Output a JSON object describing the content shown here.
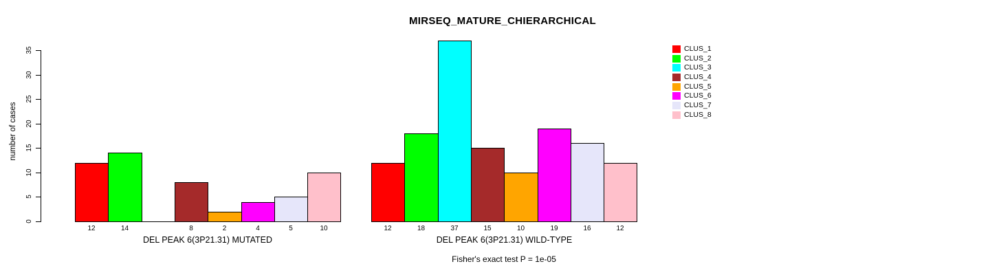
{
  "chart_data": {
    "type": "bar",
    "title": "MIRSEQ_MATURE_CHIERARCHICAL",
    "ylabel": "number of cases",
    "ylim": [
      0,
      35
    ],
    "yticks": [
      0,
      5,
      10,
      15,
      20,
      25,
      30,
      35
    ],
    "grid": false,
    "legend_position": "top-right",
    "legend": [
      {
        "label": "CLUS_1",
        "color": "#FF0000"
      },
      {
        "label": "CLUS_2",
        "color": "#00FF00"
      },
      {
        "label": "CLUS_3",
        "color": "#00FFFF"
      },
      {
        "label": "CLUS_4",
        "color": "#A52A2A"
      },
      {
        "label": "CLUS_5",
        "color": "#FFA500"
      },
      {
        "label": "CLUS_6",
        "color": "#FF00FF"
      },
      {
        "label": "CLUS_7",
        "color": "#E6E6FA"
      },
      {
        "label": "CLUS_8",
        "color": "#FFC0CB"
      }
    ],
    "groups": [
      {
        "label": "DEL PEAK  6(3P21.31) MUTATED",
        "values": [
          12,
          14,
          0,
          8,
          2,
          4,
          5,
          10
        ],
        "bar_labels": [
          "12",
          "14",
          "",
          "8",
          "2",
          "4",
          "5",
          "10"
        ]
      },
      {
        "label": "DEL PEAK  6(3P21.31) WILD-TYPE",
        "values": [
          12,
          18,
          37,
          15,
          10,
          19,
          16,
          12
        ],
        "bar_labels": [
          "12",
          "18",
          "37",
          "15",
          "10",
          "19",
          "16",
          "12"
        ]
      }
    ],
    "footnote": "Fisher's exact test P = 1e-05",
    "axis_color": "#000000",
    "bar_border_color": "#000000",
    "background_color": "#FFFFFF"
  }
}
